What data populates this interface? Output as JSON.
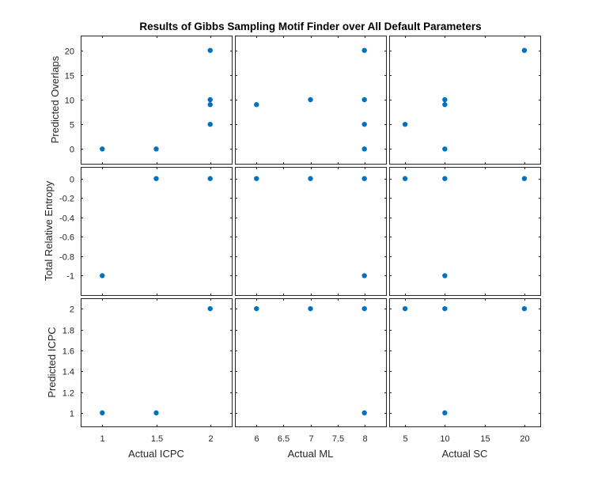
{
  "chart_data": {
    "type": "scatter",
    "title": "Results of Gibbs Sampling Motif Finder over All Default Parameters",
    "marker_color": "#0072bd",
    "grid": false,
    "columns": [
      {
        "xlabel": "Actual ICPC",
        "xlim": [
          0.8,
          2.2
        ],
        "xticks": [
          1,
          1.5,
          2
        ],
        "xticklabels": [
          "1",
          "1.5",
          "2"
        ]
      },
      {
        "xlabel": "Actual ML",
        "xlim": [
          5.6,
          8.4
        ],
        "xticks": [
          6,
          6.5,
          7,
          7.5,
          8
        ],
        "xticklabels": [
          "6",
          "6.5",
          "7",
          "7.5",
          "8"
        ]
      },
      {
        "xlabel": "Actual SC",
        "xlim": [
          3,
          22
        ],
        "xticks": [
          5,
          10,
          15,
          20
        ],
        "xticklabels": [
          "5",
          "10",
          "15",
          "20"
        ]
      }
    ],
    "rows": [
      {
        "ylabel": "Predicted Overlaps",
        "ylim": [
          -3,
          23
        ],
        "yticks": [
          0,
          5,
          10,
          15,
          20
        ],
        "yticklabels": [
          "0",
          "5",
          "10",
          "15",
          "20"
        ]
      },
      {
        "ylabel": "Total Relative Entropy",
        "ylim": [
          -1.2,
          0.12
        ],
        "yticks": [
          -1,
          -0.8,
          -0.6,
          -0.4,
          -0.2,
          0
        ],
        "yticklabels": [
          "-1",
          "-0.8",
          "-0.6",
          "-0.4",
          "-0.2",
          "0"
        ]
      },
      {
        "ylabel": "Predicted ICPC",
        "ylim": [
          0.87,
          2.1
        ],
        "yticks": [
          1,
          1.2,
          1.4,
          1.6,
          1.8,
          2
        ],
        "yticklabels": [
          "1",
          "1.2",
          "1.4",
          "1.6",
          "1.8",
          "2"
        ]
      }
    ],
    "panels": [
      [
        {
          "points": [
            [
              1,
              0
            ],
            [
              1.5,
              0
            ],
            [
              2,
              5
            ],
            [
              2,
              9
            ],
            [
              2,
              10
            ],
            [
              2,
              20
            ]
          ]
        },
        {
          "points": [
            [
              6,
              9
            ],
            [
              7,
              10
            ],
            [
              8,
              0
            ],
            [
              8,
              5
            ],
            [
              8,
              10
            ],
            [
              8,
              20
            ]
          ]
        },
        {
          "points": [
            [
              5,
              5
            ],
            [
              10,
              0
            ],
            [
              10,
              9
            ],
            [
              10,
              10
            ],
            [
              20,
              20
            ]
          ]
        }
      ],
      [
        {
          "points": [
            [
              1,
              -1
            ],
            [
              1.5,
              0
            ],
            [
              2,
              0
            ]
          ]
        },
        {
          "points": [
            [
              6,
              0
            ],
            [
              7,
              0
            ],
            [
              8,
              0
            ],
            [
              8,
              -1
            ]
          ]
        },
        {
          "points": [
            [
              5,
              0
            ],
            [
              10,
              0
            ],
            [
              10,
              -1
            ],
            [
              20,
              0
            ]
          ]
        }
      ],
      [
        {
          "points": [
            [
              1,
              1
            ],
            [
              1.5,
              1
            ],
            [
              2,
              2
            ]
          ]
        },
        {
          "points": [
            [
              6,
              2
            ],
            [
              7,
              2
            ],
            [
              8,
              2
            ],
            [
              8,
              1
            ]
          ]
        },
        {
          "points": [
            [
              5,
              2
            ],
            [
              10,
              2
            ],
            [
              10,
              1
            ],
            [
              20,
              2
            ]
          ]
        }
      ]
    ]
  }
}
